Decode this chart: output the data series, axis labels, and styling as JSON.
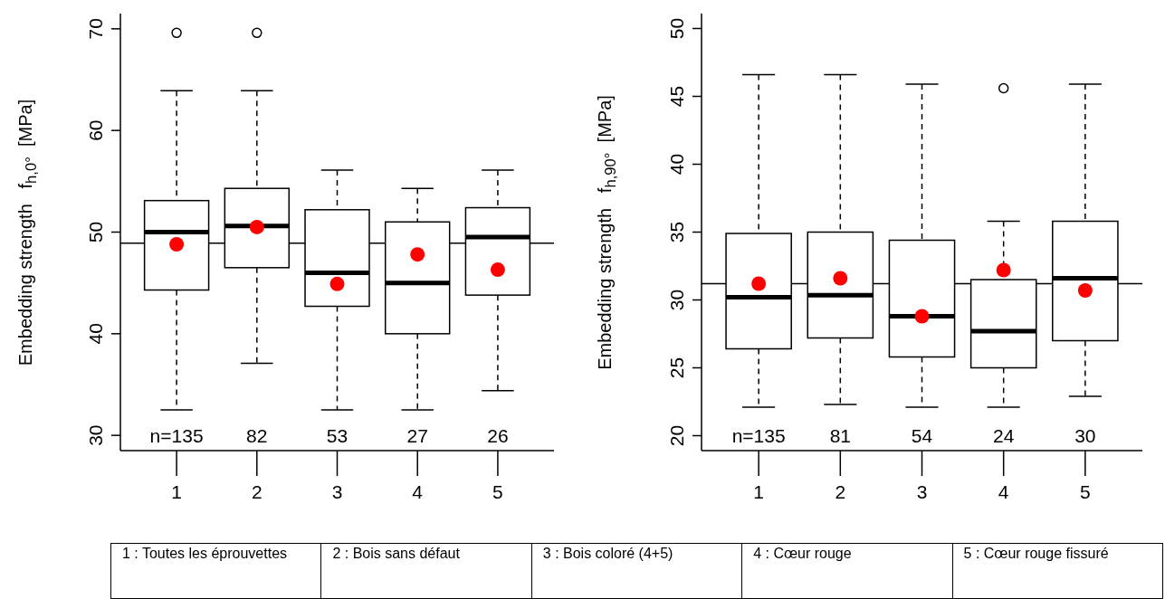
{
  "chart_data": [
    {
      "type": "box",
      "ylabel": "Embedding strength   f$_{h,0°}$  [MPa]",
      "categories": [
        "1",
        "2",
        "3",
        "4",
        "5"
      ],
      "ylim": [
        28.5,
        71.5
      ],
      "yticks": [
        30,
        40,
        50,
        60,
        70
      ],
      "boxes": [
        {
          "low": 32.5,
          "q1": 44.3,
          "median": 50.0,
          "q3": 53.1,
          "high": 63.9,
          "outliers": [
            69.6
          ]
        },
        {
          "low": 37.1,
          "q1": 46.5,
          "median": 50.6,
          "q3": 54.3,
          "high": 63.9,
          "outliers": [
            69.6
          ]
        },
        {
          "low": 32.5,
          "q1": 42.7,
          "median": 46.0,
          "q3": 52.2,
          "high": 56.1
        },
        {
          "low": 32.5,
          "q1": 40.0,
          "median": 45.0,
          "q3": 51.0,
          "high": 54.3
        },
        {
          "low": 34.4,
          "q1": 43.8,
          "median": 49.5,
          "q3": 52.4,
          "high": 56.1
        }
      ],
      "series": [
        {
          "type": "scatter",
          "color": "#ff0000",
          "x": [
            "1",
            "2",
            "3",
            "4",
            "5"
          ],
          "values": [
            48.8,
            50.5,
            44.9,
            47.8,
            46.3
          ]
        }
      ],
      "ref_lines": [
        {
          "axis": "y",
          "value": 48.9
        }
      ],
      "annotations": [
        "n=135",
        "82",
        "53",
        "27",
        "26"
      ]
    },
    {
      "type": "box",
      "ylabel": "Embedding strength   f$_{h,90°}$  [MPa]",
      "categories": [
        "1",
        "2",
        "3",
        "4",
        "5"
      ],
      "ylim": [
        18.9,
        51.1
      ],
      "yticks": [
        20,
        25,
        30,
        35,
        40,
        45,
        50
      ],
      "boxes": [
        {
          "low": 22.1,
          "q1": 26.4,
          "median": 30.2,
          "q3": 34.9,
          "high": 46.6
        },
        {
          "low": 22.3,
          "q1": 27.2,
          "median": 30.35,
          "q3": 35.0,
          "high": 46.6
        },
        {
          "low": 22.1,
          "q1": 25.8,
          "median": 28.8,
          "q3": 34.4,
          "high": 45.9
        },
        {
          "low": 22.1,
          "q1": 25.0,
          "median": 27.7,
          "q3": 31.5,
          "high": 35.8,
          "outliers": [
            45.6
          ]
        },
        {
          "low": 22.9,
          "q1": 27.0,
          "median": 31.6,
          "q3": 35.8,
          "high": 45.9
        }
      ],
      "series": [
        {
          "type": "scatter",
          "color": "#ff0000",
          "x": [
            "1",
            "2",
            "3",
            "4",
            "5"
          ],
          "values": [
            31.2,
            31.6,
            28.8,
            32.2,
            30.7
          ]
        }
      ],
      "ref_lines": [
        {
          "axis": "y",
          "value": 31.2
        }
      ],
      "annotations": [
        "n=135",
        "81",
        "54",
        "24",
        "30"
      ]
    },
    {
      "type": "other",
      "annotations": [
        "1 : Toutes les éprouvettes",
        "2 : Bois sans défaut",
        "3 : Bois coloré (4+5)",
        "4 : Cœur rouge",
        "5 : Cœur rouge fissuré"
      ]
    }
  ]
}
